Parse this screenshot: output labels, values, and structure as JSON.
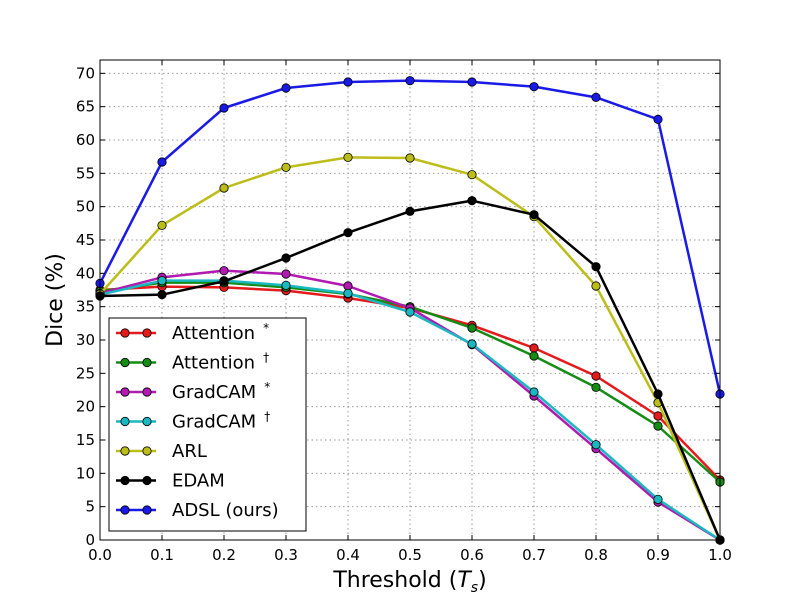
{
  "chart_data": {
    "type": "line",
    "title": "",
    "xlabel": "Threshold",
    "xlabel_math": "T",
    "xlabel_math_sub": "s",
    "ylabel": "Dice (%)",
    "xlim": [
      0.0,
      1.0
    ],
    "ylim": [
      0,
      72
    ],
    "grid": true,
    "legend_position": "lower-left",
    "x": [
      0.0,
      0.1,
      0.2,
      0.3,
      0.4,
      0.5,
      0.6,
      0.7,
      0.8,
      0.9,
      1.0
    ],
    "x_ticks": [
      "0.0",
      "0.1",
      "0.2",
      "0.3",
      "0.4",
      "0.5",
      "0.6",
      "0.7",
      "0.8",
      "0.9",
      "1.0"
    ],
    "y_ticks": [
      "0",
      "5",
      "10",
      "15",
      "20",
      "25",
      "30",
      "35",
      "40",
      "45",
      "50",
      "55",
      "60",
      "65",
      "70"
    ],
    "series": [
      {
        "name": "Attention",
        "sup": "*",
        "color": "#e41a1c",
        "values": [
          37.5,
          38.0,
          37.9,
          37.4,
          36.3,
          34.8,
          32.2,
          28.8,
          24.6,
          18.6,
          9.0
        ]
      },
      {
        "name": "Attention",
        "sup": "†",
        "color": "#158c15",
        "values": [
          37.3,
          38.6,
          38.6,
          37.9,
          36.9,
          35.0,
          31.8,
          27.6,
          22.9,
          17.1,
          8.7
        ]
      },
      {
        "name": "GradCAM",
        "sup": "*",
        "color": "#b01ab0",
        "values": [
          37.0,
          39.4,
          40.4,
          39.9,
          38.1,
          34.8,
          29.3,
          21.6,
          13.7,
          5.7,
          0.0
        ]
      },
      {
        "name": "GradCAM",
        "sup": "†",
        "color": "#1ab8c0",
        "values": [
          36.8,
          38.9,
          38.9,
          38.2,
          37.0,
          34.2,
          29.4,
          22.2,
          14.3,
          6.1,
          0.0
        ]
      },
      {
        "name": "ARL",
        "sup": "",
        "color": "#bdbd1a",
        "values": [
          36.9,
          47.2,
          52.8,
          55.9,
          57.4,
          57.3,
          54.8,
          48.5,
          38.1,
          20.6,
          0.0
        ]
      },
      {
        "name": "EDAM",
        "sup": "",
        "color": "#000000",
        "values": [
          36.6,
          36.8,
          38.8,
          42.3,
          46.1,
          49.3,
          50.9,
          48.8,
          41.0,
          21.9,
          0.0
        ]
      },
      {
        "name": "ADSL (ours)",
        "sup": "",
        "color": "#1a1ae6",
        "values": [
          38.5,
          56.7,
          64.8,
          67.8,
          68.7,
          68.9,
          68.7,
          68.0,
          66.4,
          63.1,
          21.9
        ]
      }
    ]
  }
}
